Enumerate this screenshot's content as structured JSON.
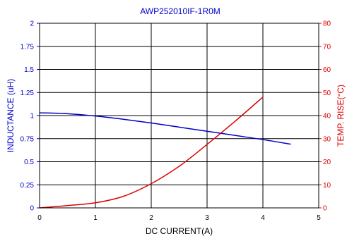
{
  "chart_data": {
    "type": "line",
    "title": "AWP252010IF-1R0M",
    "xlabel": "DC CURRENT(A)",
    "ylabel_left": "INDUCTANCE (uH)",
    "ylabel_right": "TEMP. RISE(°C)",
    "xlim": [
      0,
      5
    ],
    "ylim_left": [
      0,
      2
    ],
    "ylim_right": [
      0,
      80
    ],
    "x_ticks": [
      "0",
      "1",
      "2",
      "3",
      "4",
      "5"
    ],
    "y_ticks_left": [
      "0",
      "0.25",
      "0.5",
      "0.75",
      "1",
      "1.25",
      "1.5",
      "1.75",
      "2"
    ],
    "y_ticks_right": [
      "0",
      "10",
      "20",
      "30",
      "40",
      "50",
      "60",
      "70",
      "80"
    ],
    "grid": true,
    "series": [
      {
        "axis": "left",
        "color": "#0000cc",
        "x": [
          0,
          0.5,
          1,
          1.5,
          2,
          2.5,
          3,
          3.5,
          4,
          4.5
        ],
        "y": [
          1.03,
          1.02,
          0.995,
          0.96,
          0.92,
          0.875,
          0.83,
          0.785,
          0.74,
          0.69
        ]
      },
      {
        "axis": "right",
        "color": "#dd0000",
        "x": [
          0,
          0.5,
          1,
          1.5,
          2,
          2.5,
          3,
          3.5,
          4
        ],
        "y": [
          0,
          1,
          2.2,
          5,
          10.5,
          18,
          27.5,
          37.5,
          48
        ]
      }
    ],
    "colors": {
      "title": "#0000cc",
      "left_axis_labels": "#0000cc",
      "right_axis_labels": "#dd0000",
      "x_axis_labels": "#000000",
      "grid": "#000000"
    }
  }
}
